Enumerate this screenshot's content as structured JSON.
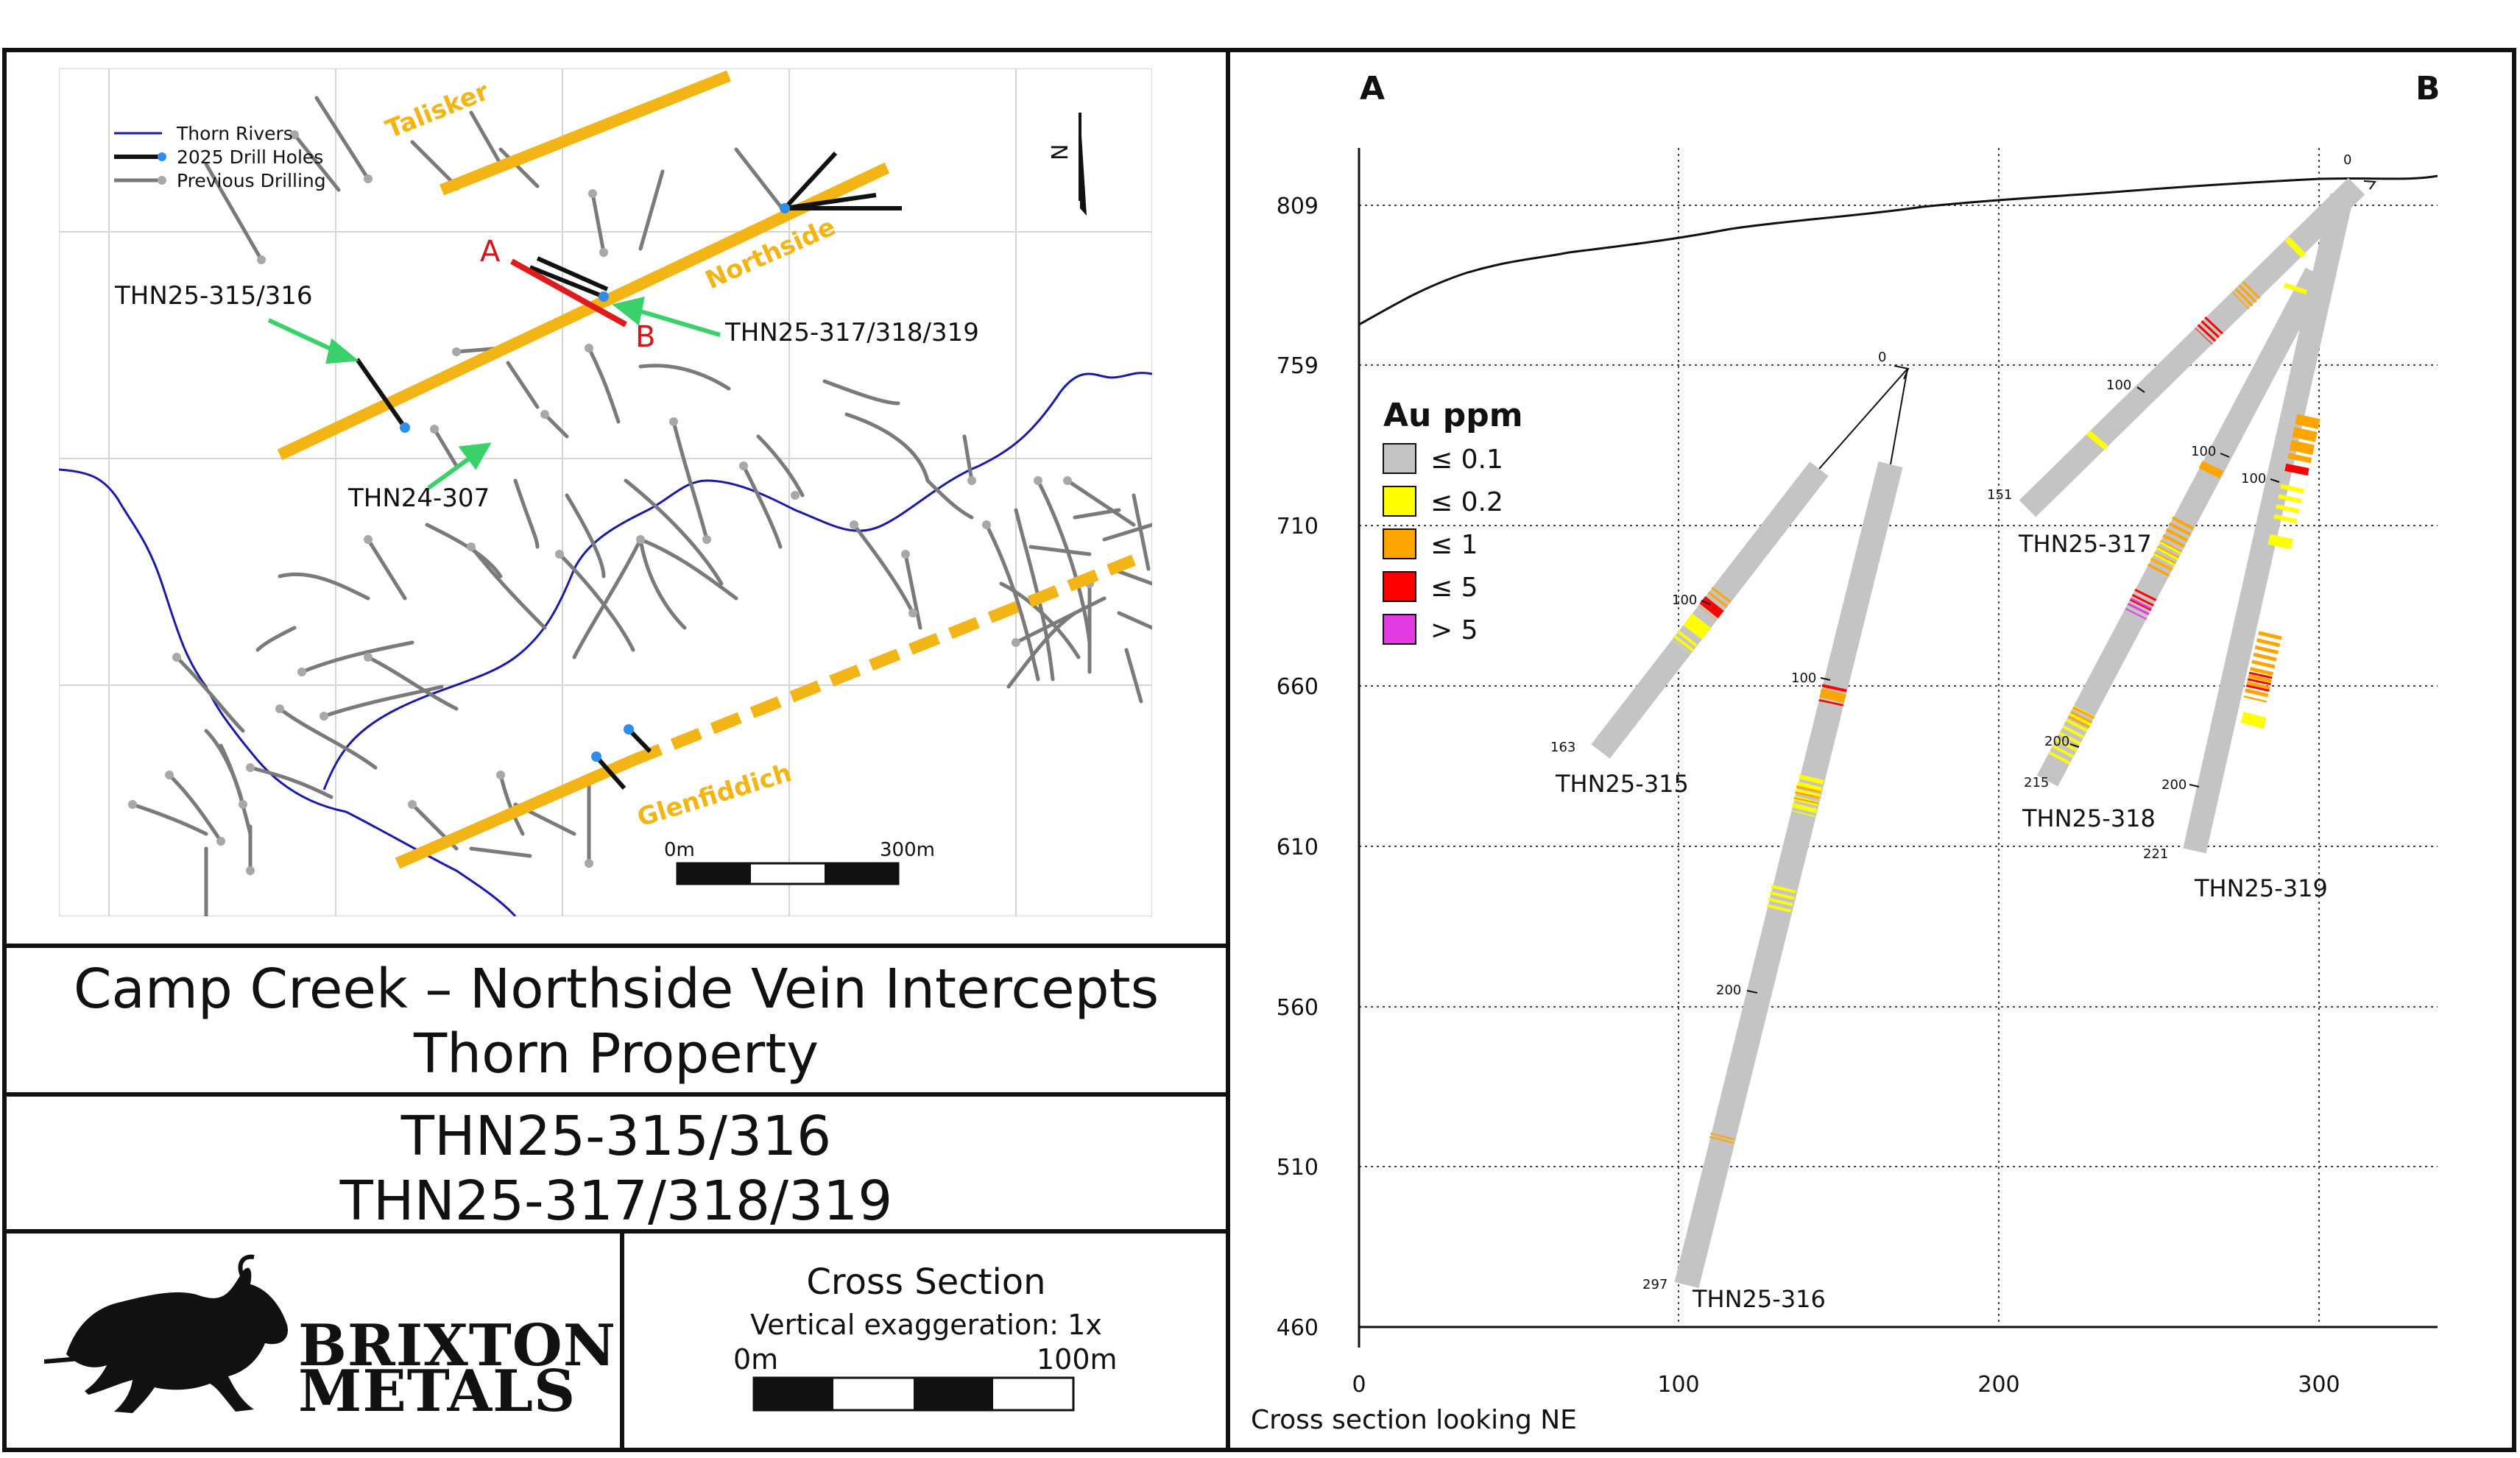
{
  "map": {
    "legend": [
      {
        "label": "Thorn Rivers",
        "color": "#1a1aa8"
      },
      {
        "label": "2025 Drill Holes",
        "color": "#111111"
      },
      {
        "label": "Previous Drilling",
        "color": "#7a7a7a"
      }
    ],
    "vein_labels": {
      "talisker": "Talisker",
      "northside": "Northside",
      "glenfiddich": "Glenfiddich"
    },
    "hole_labels": {
      "h315": "THN25-315/316",
      "h317": "THN25-317/318/319",
      "h307": "THN24-307"
    },
    "section_end_a": "A",
    "section_end_b": "B",
    "north_label": "N",
    "scale": {
      "start": "0m",
      "end": "300m"
    },
    "colors": {
      "vein": "#f2b515",
      "river": "#1a1aa8",
      "section_line": "#e01b1b",
      "arrow": "#3bd16a",
      "prev_drill": "#7a7a7a"
    }
  },
  "title": {
    "line1": "Camp Creek – Northside Vein Intercepts",
    "line2": "Thorn Property"
  },
  "holes_caption": {
    "line1": "THN25-315/316",
    "line2": "THN25-317/318/319"
  },
  "logo": {
    "line1": "BRIXTON",
    "line2": "METALS"
  },
  "cross_section_box": {
    "title": "Cross Section",
    "subtitle": "Vertical exaggeration: 1x",
    "scale_start": "0m",
    "scale_end": "100m"
  },
  "section": {
    "corner_a": "A",
    "corner_b": "B",
    "caption": "Cross section looking NE",
    "y_ticks": [
      "809",
      "759",
      "710",
      "660",
      "610",
      "560",
      "510",
      "460"
    ],
    "x_ticks": [
      "0",
      "100",
      "200",
      "300"
    ],
    "legend_title": "Au ppm",
    "legend": [
      {
        "label": "≤ 0.1",
        "color": "#c4c4c4"
      },
      {
        "label": "≤ 0.2",
        "color": "#ffff00"
      },
      {
        "label": "≤ 1",
        "color": "#ffa500"
      },
      {
        "label": "≤ 5",
        "color": "#ff0000"
      },
      {
        "label": "> 5",
        "color": "#e23be2"
      }
    ],
    "hole_names": {
      "h315": "THN25-315",
      "h316": "THN25-316",
      "h317": "THN25-317",
      "h318": "THN25-318",
      "h319": "THN25-319"
    },
    "depth_labels": {
      "collar": "0",
      "collar_b": "0",
      "h315_100": "100",
      "h315_end": "163",
      "h316_100": "100",
      "h316_200": "200",
      "h316_end": "297",
      "h317_100": "100",
      "h317_end": "151",
      "h318_100": "100",
      "h318_200": "200",
      "h318_end": "215",
      "h319_100": "100",
      "h319_200": "200",
      "h319_end": "221"
    }
  }
}
